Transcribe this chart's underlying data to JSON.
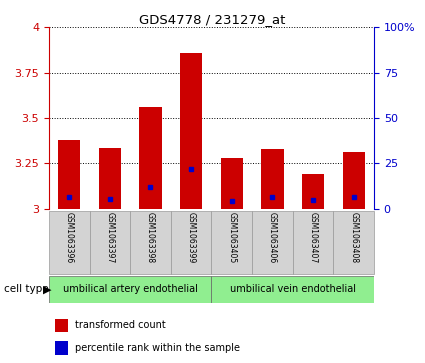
{
  "title": "GDS4778 / 231279_at",
  "samples": [
    "GSM1063396",
    "GSM1063397",
    "GSM1063398",
    "GSM1063399",
    "GSM1063405",
    "GSM1063406",
    "GSM1063407",
    "GSM1063408"
  ],
  "bar_heights": [
    3.38,
    3.335,
    3.56,
    3.86,
    3.28,
    3.33,
    3.19,
    3.31
  ],
  "blue_dots": [
    3.065,
    3.055,
    3.12,
    3.22,
    3.04,
    3.065,
    3.05,
    3.065
  ],
  "ylim": [
    3.0,
    4.0
  ],
  "y_ticks_left": [
    3.0,
    3.25,
    3.5,
    3.75,
    4.0
  ],
  "y_tick_labels_left": [
    "3",
    "3.25",
    "3.5",
    "3.75",
    "4"
  ],
  "y_ticks_right_vals": [
    0,
    25,
    50,
    75,
    100
  ],
  "y_ticks_right_labels": [
    "0",
    "25",
    "50",
    "75",
    "100%"
  ],
  "bar_color": "#cc0000",
  "dot_color": "#0000cc",
  "bar_width": 0.55,
  "group1_label": "umbilical artery endothelial",
  "group2_label": "umbilical vein endothelial",
  "cell_type_label": "cell type",
  "legend1": "transformed count",
  "legend2": "percentile rank within the sample",
  "background_color": "#ffffff",
  "group_bg_color": "#90ee90",
  "tick_bg_color": "#d3d3d3",
  "left_axis_color": "#cc0000",
  "right_axis_color": "#0000cc",
  "grid_color": "#000000"
}
